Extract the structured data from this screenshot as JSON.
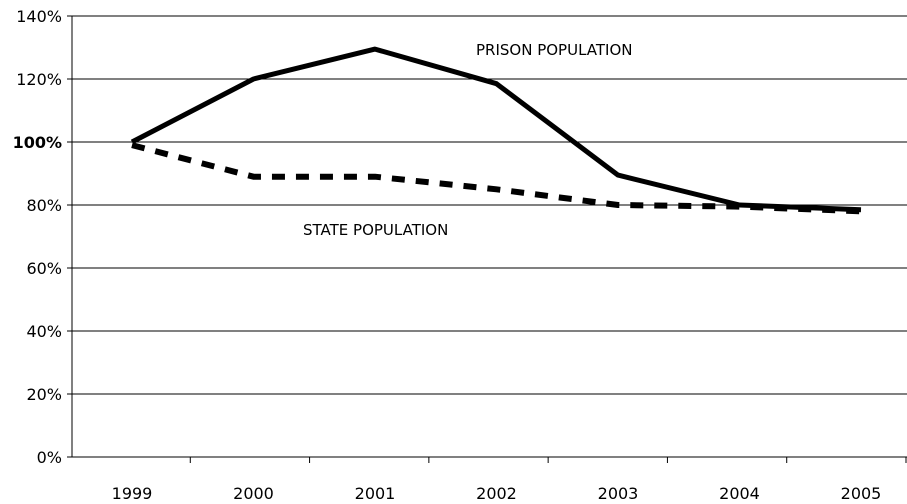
{
  "chart_data": {
    "type": "line",
    "title": "",
    "xlabel": "",
    "ylabel": "",
    "categories": [
      "1999",
      "2000",
      "2001",
      "2002",
      "2003",
      "2004",
      "2005"
    ],
    "y_ticks": [
      "0%",
      "20%",
      "40%",
      "60%",
      "80%",
      "100%",
      "120%",
      "140%"
    ],
    "y_tick_bold": "100%",
    "ylim": [
      0,
      140
    ],
    "grid": true,
    "series": [
      {
        "name": "PRISON POPULATION",
        "values": [
          100,
          120,
          129.5,
          118.5,
          89.5,
          80,
          78.5
        ],
        "style": "solid",
        "color": "#000000"
      },
      {
        "name": "STATE POPULATION",
        "values": [
          99,
          89,
          89,
          85,
          80,
          79.5,
          78
        ],
        "style": "dashed",
        "color": "#000000"
      }
    ]
  }
}
